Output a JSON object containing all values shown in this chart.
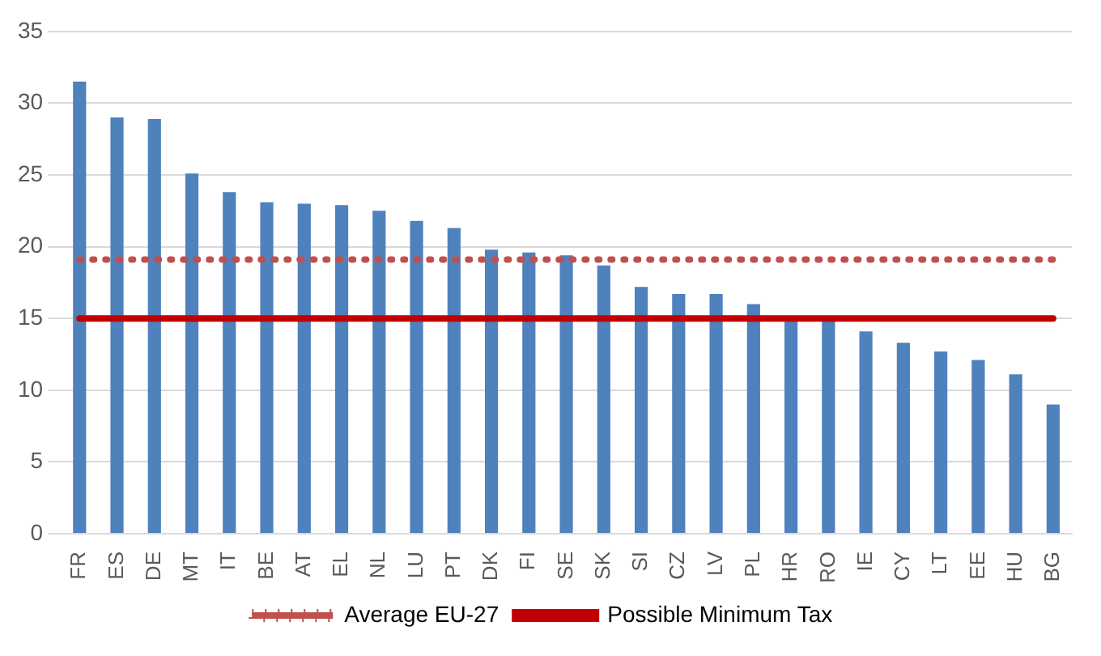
{
  "chart_data": {
    "type": "bar",
    "categories": [
      "FR",
      "ES",
      "DE",
      "MT",
      "IT",
      "BE",
      "AT",
      "EL",
      "NL",
      "LU",
      "PT",
      "DK",
      "FI",
      "SE",
      "SK",
      "SI",
      "CZ",
      "LV",
      "PL",
      "HR",
      "RO",
      "IE",
      "CY",
      "LT",
      "EE",
      "HU",
      "BG"
    ],
    "series": [
      {
        "color": "#4f81bd",
        "values": [
          31.5,
          29.0,
          28.9,
          25.1,
          23.8,
          23.1,
          23.0,
          22.9,
          22.5,
          21.8,
          21.3,
          19.8,
          19.6,
          19.4,
          18.7,
          17.2,
          16.7,
          16.7,
          16.0,
          15.0,
          15.0,
          14.1,
          13.3,
          12.7,
          12.1,
          11.1,
          9.0
        ]
      }
    ],
    "ylim": [
      0,
      35
    ],
    "yticks": [
      0,
      5,
      10,
      15,
      20,
      25,
      30,
      35
    ],
    "grid": "y",
    "legend": "bottom",
    "ref_lines": [
      {
        "axis": "y",
        "value": 19.1,
        "label": "Average EU-27",
        "color": "#c0504d",
        "line_style": "dotted"
      },
      {
        "axis": "y",
        "value": 15,
        "label": "Possible Minimum Tax",
        "color": "#c00000",
        "line_style": "solid"
      }
    ]
  }
}
